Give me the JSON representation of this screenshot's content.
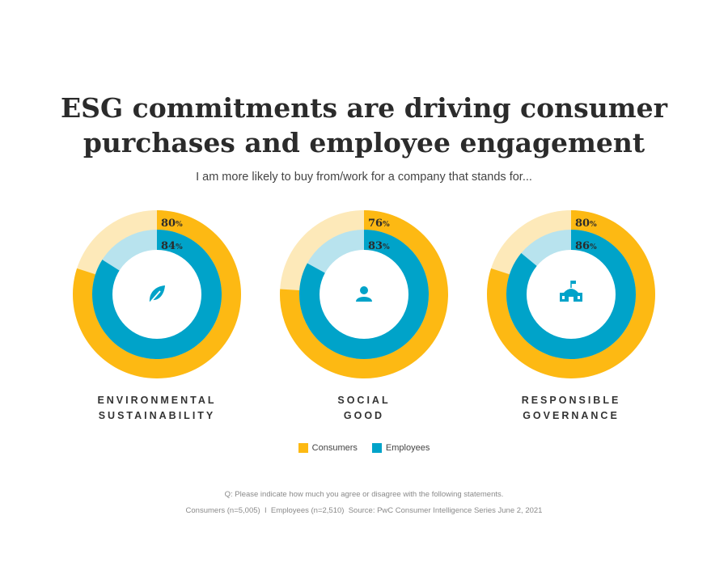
{
  "header": {
    "title_line1": "ESG commitments are driving consumer",
    "title_line2": "purchases and employee engagement",
    "subtitle": "I am more likely to buy from/work for a company that stands for..."
  },
  "chart_data": {
    "type": "donut",
    "series": [
      {
        "name": "Consumers",
        "values": [
          80,
          76,
          80
        ]
      },
      {
        "name": "Employees",
        "values": [
          84,
          83,
          86
        ]
      }
    ],
    "categories": [
      {
        "line1": "ENVIRONMENTAL",
        "line2": "SUSTAINABILITY",
        "icon": "leaf-icon"
      },
      {
        "line1": "SOCIAL",
        "line2": "GOOD",
        "icon": "person-icon"
      },
      {
        "line1": "RESPONSIBLE",
        "line2": "GOVERNANCE",
        "icon": "government-building-icon"
      }
    ],
    "value_labels": {
      "consumers": [
        "80%",
        "76%",
        "80%"
      ],
      "employees": [
        "84%",
        "83%",
        "86%"
      ]
    },
    "unit": "%",
    "legend_placement": "bottom-center"
  },
  "legend": {
    "consumers": "Consumers",
    "employees": "Employees"
  },
  "footnotes": {
    "question": "Q: Please indicate how much you agree or disagree with the following statements.",
    "sources": "Consumers (n=5,005)  I  Employees (n=2,510)  Source: PwC Consumer Intelligence Series June 2, 2021"
  },
  "colors": {
    "consumers": "#FDB913",
    "consumers_light": "#FDE9B9",
    "employees": "#00A3C9",
    "employees_light": "#B8E3EE",
    "center": "#FFFFFF"
  }
}
